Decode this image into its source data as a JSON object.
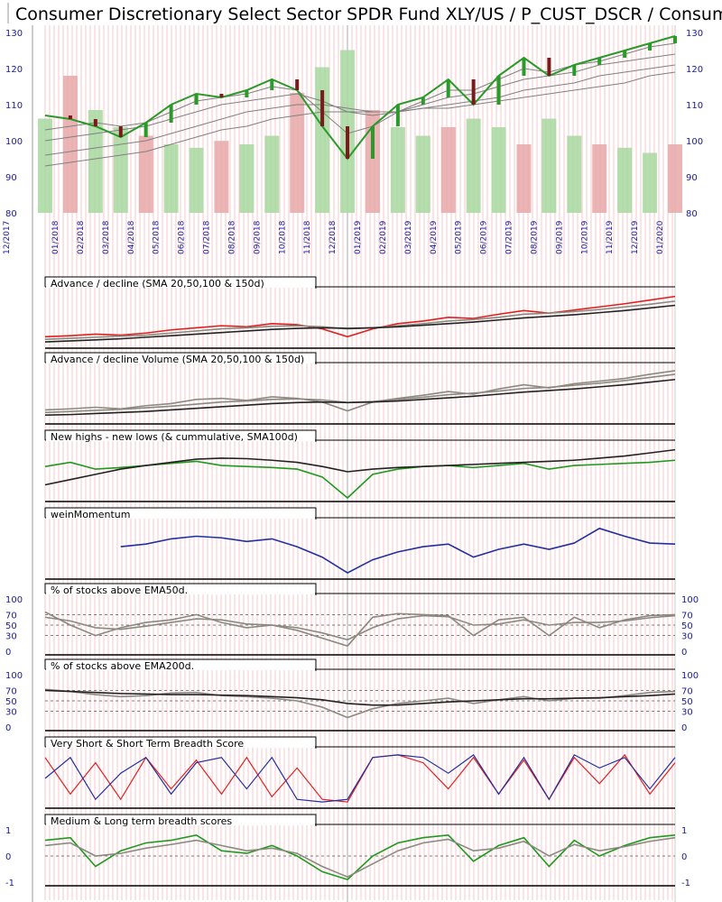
{
  "title": "Consumer Discretionary Select Sector SPDR Fund XLY/US / P_CUST_DSCR / Consumer",
  "colors": {
    "up_candle": "#2a9a2a",
    "down_candle": "#7a1a1a",
    "ad_line": "#e02020",
    "ma_line": "#808080",
    "dark_line": "#222222",
    "green_line": "#1e9a1e",
    "blue_line": "#2030a0",
    "red_line": "#e02020",
    "gray_line": "#8a8a80",
    "vol_green": "#a8d8a0",
    "vol_red": "#e8a8a8",
    "stripe": "#f6c8cc",
    "axis_text": "#1a1a9a"
  },
  "chart_data": {
    "type": "line",
    "x_dates": [
      "12/2017",
      "01/2018",
      "02/2018",
      "03/2018",
      "04/2018",
      "05/2018",
      "06/2018",
      "07/2018",
      "08/2018",
      "09/2018",
      "10/2018",
      "11/2018",
      "12/2018",
      "01/2019",
      "02/2019",
      "03/2019",
      "04/2019",
      "05/2019",
      "06/2019",
      "07/2019",
      "08/2019",
      "09/2019",
      "10/2019",
      "11/2019",
      "12/2019",
      "01/2020"
    ],
    "price_panel": {
      "yticks_left": [
        "130",
        "120",
        "110",
        "100",
        "90",
        "80"
      ],
      "yticks_right": [
        "130",
        "120",
        "110",
        "100",
        "90",
        "80"
      ],
      "ylim": [
        80,
        131
      ],
      "close": [
        107,
        106,
        104,
        101,
        105,
        110,
        113,
        112,
        114,
        117,
        114,
        104,
        95,
        104,
        110,
        112,
        117,
        110,
        118,
        123,
        118,
        121,
        123,
        125,
        127,
        129
      ],
      "ma_series": [
        {
          "values": [
            103,
            104,
            105,
            104,
            105,
            108,
            111,
            112,
            113,
            115,
            114,
            108,
            102,
            104,
            108,
            111,
            114,
            114,
            117,
            120,
            119,
            121,
            122,
            124,
            126,
            127
          ]
        },
        {
          "values": [
            100,
            101,
            102,
            103,
            104,
            106,
            108,
            110,
            111,
            112,
            113,
            111,
            108,
            107,
            108,
            110,
            112,
            113,
            115,
            117,
            118,
            119,
            121,
            122,
            123,
            124
          ]
        },
        {
          "values": [
            96,
            97,
            98,
            99,
            100,
            102,
            104,
            106,
            108,
            109,
            110,
            110,
            109,
            108,
            108,
            109,
            110,
            111,
            112,
            114,
            115,
            116,
            118,
            119,
            120,
            121
          ]
        },
        {
          "values": [
            93,
            94,
            95,
            96,
            97,
            99,
            101,
            103,
            104,
            106,
            107,
            108,
            108,
            108,
            108,
            109,
            109,
            110,
            111,
            112,
            113,
            114,
            115,
            116,
            118,
            119
          ]
        }
      ],
      "volume_relative": [
        0.55,
        0.8,
        0.6,
        0.5,
        0.45,
        0.4,
        0.38,
        0.42,
        0.4,
        0.45,
        0.7,
        0.85,
        0.95,
        0.6,
        0.5,
        0.45,
        0.5,
        0.55,
        0.5,
        0.4,
        0.55,
        0.45,
        0.4,
        0.38,
        0.35,
        0.4
      ]
    },
    "panels": [
      {
        "label": "Advance / decline (SMA 20,50,100 & 150d)",
        "series": [
          {
            "values": [
              0.15,
              0.17,
              0.2,
              0.18,
              0.22,
              0.28,
              0.32,
              0.36,
              0.34,
              0.4,
              0.38,
              0.3,
              0.15,
              0.3,
              0.4,
              0.45,
              0.52,
              0.5,
              0.58,
              0.65,
              0.6,
              0.66,
              0.72,
              0.78,
              0.85,
              0.92
            ]
          },
          {
            "values": [
              0.1,
              0.12,
              0.14,
              0.16,
              0.18,
              0.22,
              0.26,
              0.3,
              0.32,
              0.35,
              0.36,
              0.34,
              0.3,
              0.32,
              0.36,
              0.4,
              0.45,
              0.48,
              0.52,
              0.58,
              0.6,
              0.63,
              0.67,
              0.72,
              0.77,
              0.83
            ]
          },
          {
            "values": [
              0.05,
              0.07,
              0.09,
              0.11,
              0.14,
              0.17,
              0.2,
              0.23,
              0.26,
              0.29,
              0.31,
              0.32,
              0.31,
              0.32,
              0.34,
              0.37,
              0.4,
              0.43,
              0.47,
              0.51,
              0.54,
              0.57,
              0.61,
              0.65,
              0.7,
              0.75
            ]
          }
        ]
      },
      {
        "label": "Advance / decline Volume (SMA 20,50,100 & 150d)",
        "series": [
          {
            "values": [
              0.2,
              0.22,
              0.25,
              0.22,
              0.28,
              0.32,
              0.4,
              0.42,
              0.38,
              0.45,
              0.42,
              0.35,
              0.18,
              0.35,
              0.42,
              0.48,
              0.55,
              0.5,
              0.6,
              0.68,
              0.62,
              0.7,
              0.75,
              0.8,
              0.88,
              0.95
            ]
          },
          {
            "values": [
              0.15,
              0.17,
              0.19,
              0.21,
              0.24,
              0.27,
              0.31,
              0.35,
              0.37,
              0.4,
              0.41,
              0.39,
              0.34,
              0.36,
              0.4,
              0.44,
              0.49,
              0.52,
              0.56,
              0.61,
              0.63,
              0.67,
              0.71,
              0.76,
              0.82,
              0.88
            ]
          },
          {
            "values": [
              0.1,
              0.11,
              0.13,
              0.15,
              0.17,
              0.2,
              0.23,
              0.26,
              0.29,
              0.32,
              0.34,
              0.35,
              0.34,
              0.35,
              0.37,
              0.4,
              0.43,
              0.46,
              0.5,
              0.54,
              0.57,
              0.6,
              0.64,
              0.68,
              0.73,
              0.78
            ]
          }
        ]
      },
      {
        "label": "New highs - new lows (& cummulative, SMA100d)",
        "series": [
          {
            "values": [
              0.6,
              0.68,
              0.55,
              0.58,
              0.62,
              0.66,
              0.7,
              0.62,
              0.6,
              0.58,
              0.55,
              0.4,
              0.0,
              0.45,
              0.55,
              0.6,
              0.62,
              0.58,
              0.62,
              0.66,
              0.55,
              0.62,
              0.64,
              0.66,
              0.68,
              0.72
            ]
          },
          {
            "values": [
              0.25,
              0.35,
              0.45,
              0.55,
              0.62,
              0.68,
              0.74,
              0.76,
              0.75,
              0.72,
              0.68,
              0.6,
              0.5,
              0.55,
              0.58,
              0.6,
              0.62,
              0.64,
              0.66,
              0.68,
              0.7,
              0.72,
              0.76,
              0.8,
              0.86,
              0.92
            ]
          }
        ]
      },
      {
        "label": "weinMomentum",
        "series": [
          {
            "values": [
              null,
              null,
              null,
              0.55,
              0.6,
              0.7,
              0.75,
              0.72,
              0.65,
              0.7,
              0.55,
              0.35,
              0.05,
              0.3,
              0.45,
              0.55,
              0.6,
              0.35,
              0.5,
              0.6,
              0.5,
              0.62,
              0.9,
              0.75,
              0.62,
              0.6
            ]
          }
        ]
      },
      {
        "label": "% of stocks above EMA50d.",
        "yticks": [
          "100",
          "70",
          "50",
          "30",
          "0"
        ],
        "series": [
          {
            "values": [
              0.75,
              0.5,
              0.3,
              0.45,
              0.55,
              0.6,
              0.7,
              0.55,
              0.45,
              0.5,
              0.4,
              0.25,
              0.1,
              0.65,
              0.72,
              0.7,
              0.68,
              0.3,
              0.6,
              0.65,
              0.3,
              0.65,
              0.45,
              0.6,
              0.68,
              0.7
            ]
          },
          {
            "values": [
              0.65,
              0.58,
              0.45,
              0.42,
              0.48,
              0.55,
              0.62,
              0.6,
              0.52,
              0.5,
              0.45,
              0.35,
              0.22,
              0.45,
              0.62,
              0.68,
              0.66,
              0.5,
              0.52,
              0.6,
              0.5,
              0.55,
              0.55,
              0.58,
              0.64,
              0.68
            ]
          }
        ]
      },
      {
        "label": "% of stocks above EMA200d.",
        "yticks": [
          "100",
          "70",
          "50",
          "30",
          "0"
        ],
        "series": [
          {
            "values": [
              0.72,
              0.68,
              0.62,
              0.58,
              0.6,
              0.65,
              0.66,
              0.6,
              0.58,
              0.55,
              0.5,
              0.38,
              0.18,
              0.35,
              0.45,
              0.5,
              0.55,
              0.45,
              0.52,
              0.58,
              0.5,
              0.55,
              0.55,
              0.6,
              0.66,
              0.68
            ]
          },
          {
            "values": [
              0.7,
              0.68,
              0.66,
              0.64,
              0.63,
              0.62,
              0.62,
              0.61,
              0.6,
              0.58,
              0.56,
              0.52,
              0.45,
              0.42,
              0.42,
              0.45,
              0.48,
              0.5,
              0.52,
              0.54,
              0.54,
              0.55,
              0.56,
              0.58,
              0.6,
              0.63
            ]
          }
        ]
      },
      {
        "label": "Very Short & Short Term Breadth Score",
        "series": [
          {
            "values": [
              0.9,
              0.2,
              0.8,
              0.1,
              0.9,
              0.3,
              0.85,
              0.2,
              0.9,
              0.15,
              0.7,
              0.1,
              0.05,
              0.9,
              0.95,
              0.8,
              0.3,
              0.9,
              0.2,
              0.85,
              0.1,
              0.9,
              0.4,
              0.95,
              0.2,
              0.8
            ]
          },
          {
            "values": [
              0.5,
              0.9,
              0.1,
              0.6,
              0.9,
              0.2,
              0.8,
              0.9,
              0.3,
              0.9,
              0.1,
              0.05,
              0.1,
              0.9,
              0.95,
              0.9,
              0.6,
              0.95,
              0.2,
              0.9,
              0.1,
              0.95,
              0.7,
              0.9,
              0.3,
              0.9
            ]
          }
        ]
      },
      {
        "label": "Medium & Long term breadth scores",
        "yticks": [
          "1",
          "0",
          "-1"
        ],
        "series": [
          {
            "values": [
              0.8,
              0.85,
              0.3,
              0.6,
              0.75,
              0.8,
              0.9,
              0.6,
              0.55,
              0.7,
              0.5,
              0.2,
              0.05,
              0.5,
              0.75,
              0.85,
              0.9,
              0.4,
              0.7,
              0.85,
              0.3,
              0.8,
              0.5,
              0.7,
              0.85,
              0.9
            ]
          },
          {
            "values": [
              0.7,
              0.75,
              0.5,
              0.55,
              0.65,
              0.72,
              0.8,
              0.7,
              0.6,
              0.65,
              0.55,
              0.3,
              0.1,
              0.35,
              0.6,
              0.75,
              0.82,
              0.6,
              0.65,
              0.78,
              0.5,
              0.72,
              0.6,
              0.68,
              0.78,
              0.85
            ]
          }
        ]
      }
    ]
  }
}
